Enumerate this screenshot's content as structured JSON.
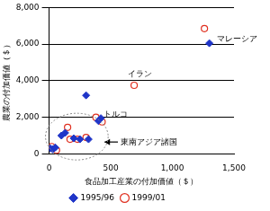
{
  "chart_data": {
    "type": "scatter",
    "x_label": "食品加工産業の付加価値（＄）",
    "y_label": "農業の付加価値（＄）",
    "xlim": [
      0,
      1500
    ],
    "xticks": [
      0,
      500,
      {
        "value": 1000,
        "label": "1,000"
      },
      {
        "value": 1500,
        "label": "1,500"
      }
    ],
    "ylim": [
      0,
      8000
    ],
    "yticks": [
      0,
      {
        "value": 2000,
        "label": "2,000"
      },
      {
        "value": 4000,
        "label": "4,000"
      },
      {
        "value": 6000,
        "label": "6,000"
      },
      {
        "value": 8000,
        "label": "8,000"
      }
    ],
    "grid": "y",
    "legend": "bottom",
    "series": [
      {
        "name": "1995/96",
        "color": "#1f35c8",
        "marker": "diamond",
        "x": [
          10,
          30,
          50,
          100,
          130,
          200,
          250,
          300,
          320,
          400,
          420,
          1300
        ],
        "values": [
          300,
          250,
          350,
          1000,
          1150,
          850,
          800,
          3200,
          800,
          1800,
          1950,
          6050
        ]
      },
      {
        "name": "1999/01",
        "color": "#e03020",
        "marker": "open_circle",
        "x": [
          20,
          60,
          150,
          170,
          230,
          300,
          380,
          430,
          690,
          1260
        ],
        "values": [
          400,
          200,
          1450,
          800,
          800,
          900,
          2000,
          1750,
          3750,
          6850
        ]
      }
    ],
    "annotations": [
      {
        "text": "マレーシア",
        "x": 1360,
        "y": 6250
      },
      {
        "text": "イラン",
        "x": 640,
        "y": 4350
      },
      {
        "text": "トルコ",
        "x": 440,
        "y": 2150
      },
      {
        "text": "東南アジア諸国",
        "x": 580,
        "y": 650,
        "arrow_x": 450
      }
    ]
  }
}
